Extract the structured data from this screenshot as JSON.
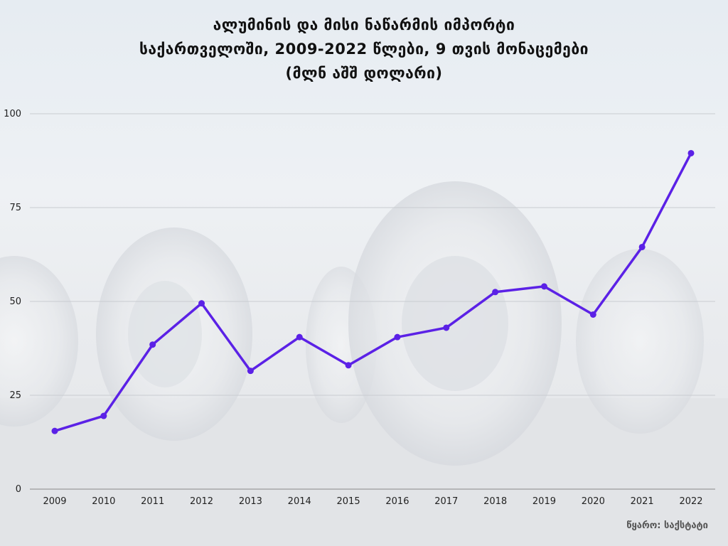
{
  "chart_data": {
    "type": "line",
    "title_lines": [
      "ალუმინის და მისი ნაწარმის იმპორტი",
      "საქართველოში, 2009-2022 წლები, 9 თვის მონაცემები",
      "(მლნ აშშ დოლარი)"
    ],
    "xlabel": "",
    "ylabel": "",
    "categories": [
      "2009",
      "2010",
      "2011",
      "2012",
      "2013",
      "2014",
      "2015",
      "2016",
      "2017",
      "2018",
      "2019",
      "2020",
      "2021",
      "2022"
    ],
    "series": [
      {
        "values": [
          15.5,
          19.5,
          38.5,
          49.5,
          31.5,
          40.5,
          33,
          40.5,
          43,
          52.5,
          54,
          46.5,
          64.5,
          89.5
        ]
      }
    ],
    "ylim": [
      0,
      100
    ],
    "yticks": [
      0,
      25,
      50,
      75,
      100
    ],
    "grid": true,
    "legend": "none",
    "line_color": "#5b21e6",
    "grid_color": "#c9ccd1"
  },
  "source": "წყარო: საქსტატი"
}
